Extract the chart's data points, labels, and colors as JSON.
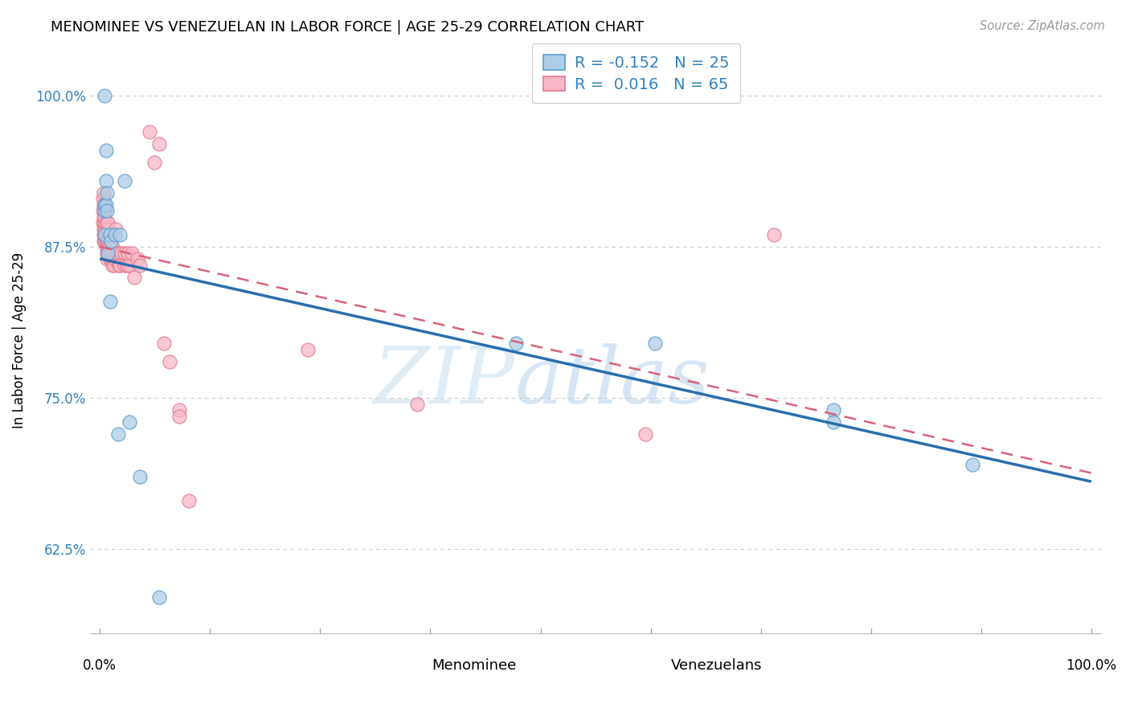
{
  "title": "MENOMINEE VS VENEZUELAN IN LABOR FORCE | AGE 25-29 CORRELATION CHART",
  "source_text": "Source: ZipAtlas.com",
  "ylabel": "In Labor Force | Age 25-29",
  "menominee_R": -0.152,
  "menominee_N": 25,
  "venezuelan_R": 0.016,
  "venezuelan_N": 65,
  "blue_fill": "#aecde8",
  "blue_edge": "#5b9dc9",
  "pink_fill": "#f9b8c8",
  "pink_edge": "#e07a90",
  "blue_line_color": "#2a6ead",
  "pink_line_color": "#d9637a",
  "ylim": [
    0.555,
    1.04
  ],
  "xlim": [
    -0.01,
    1.01
  ],
  "y_ticks": [
    0.625,
    0.75,
    0.875,
    1.0
  ],
  "y_tick_labels": [
    "62.5%",
    "75.0%",
    "87.5%",
    "100.0%"
  ],
  "menominee_x": [
    0.005,
    0.005,
    0.005,
    0.005,
    0.006,
    0.006,
    0.006,
    0.007,
    0.007,
    0.008,
    0.01,
    0.01,
    0.011,
    0.015,
    0.018,
    0.02,
    0.025,
    0.03,
    0.04,
    0.06,
    0.42,
    0.56,
    0.74,
    0.74,
    0.88
  ],
  "menominee_y": [
    0.885,
    0.905,
    0.91,
    1.0,
    0.91,
    0.93,
    0.955,
    0.905,
    0.92,
    0.87,
    0.83,
    0.885,
    0.88,
    0.885,
    0.72,
    0.885,
    0.93,
    0.73,
    0.685,
    0.585,
    0.795,
    0.795,
    0.74,
    0.73,
    0.695
  ],
  "venezuelan_x": [
    0.003,
    0.003,
    0.003,
    0.004,
    0.004,
    0.004,
    0.004,
    0.004,
    0.004,
    0.005,
    0.005,
    0.005,
    0.005,
    0.005,
    0.005,
    0.005,
    0.006,
    0.006,
    0.006,
    0.007,
    0.007,
    0.007,
    0.008,
    0.008,
    0.008,
    0.008,
    0.009,
    0.009,
    0.009,
    0.01,
    0.01,
    0.01,
    0.012,
    0.012,
    0.013,
    0.013,
    0.014,
    0.015,
    0.016,
    0.017,
    0.018,
    0.019,
    0.02,
    0.022,
    0.025,
    0.025,
    0.027,
    0.028,
    0.03,
    0.032,
    0.035,
    0.038,
    0.04,
    0.05,
    0.055,
    0.06,
    0.065,
    0.07,
    0.08,
    0.08,
    0.09,
    0.21,
    0.32,
    0.55,
    0.68
  ],
  "venezuelan_y": [
    0.895,
    0.905,
    0.915,
    0.88,
    0.885,
    0.89,
    0.9,
    0.91,
    0.92,
    0.88,
    0.885,
    0.89,
    0.895,
    0.9,
    0.905,
    0.91,
    0.875,
    0.88,
    0.895,
    0.865,
    0.87,
    0.88,
    0.875,
    0.88,
    0.89,
    0.895,
    0.87,
    0.875,
    0.88,
    0.865,
    0.875,
    0.885,
    0.865,
    0.87,
    0.86,
    0.875,
    0.86,
    0.865,
    0.89,
    0.87,
    0.87,
    0.86,
    0.86,
    0.87,
    0.86,
    0.87,
    0.86,
    0.87,
    0.86,
    0.87,
    0.85,
    0.865,
    0.86,
    0.97,
    0.945,
    0.96,
    0.795,
    0.78,
    0.74,
    0.735,
    0.665,
    0.79,
    0.745,
    0.72,
    0.885
  ],
  "watermark_line1": "ZIP",
  "watermark_line2": "atlas",
  "background_color": "#ffffff",
  "grid_color": "#cccccc",
  "title_fontsize": 13,
  "tick_fontsize": 12,
  "label_fontsize": 12,
  "legend_fontsize": 14,
  "marker_size": 150
}
